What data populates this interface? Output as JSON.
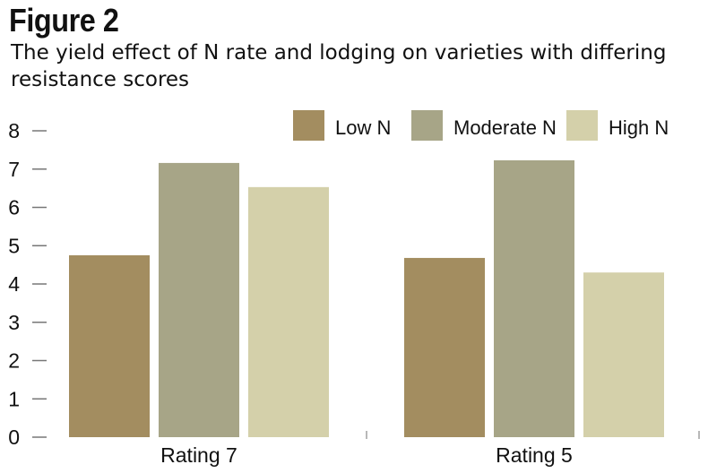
{
  "chart_data": {
    "type": "bar",
    "title": "Figure 2",
    "subtitle": "The yield effect of N rate and lodging on varieties with differing resistance scores",
    "categories": [
      "Rating 7",
      "Rating 5"
    ],
    "series": [
      {
        "name": "Low N",
        "color": "#a38d60",
        "values": [
          4.75,
          4.68
        ]
      },
      {
        "name": "Moderate N",
        "color": "#a7a587",
        "values": [
          7.16,
          7.23
        ]
      },
      {
        "name": "High N",
        "color": "#d4d0aa",
        "values": [
          6.53,
          4.3
        ]
      }
    ],
    "yticks": [
      "0",
      "1",
      "2",
      "3",
      "4",
      "5",
      "6",
      "7",
      "8"
    ],
    "ylim": [
      0,
      8
    ],
    "xlabel": "",
    "ylabel": "",
    "grid": false,
    "legend_position": "top-right"
  }
}
